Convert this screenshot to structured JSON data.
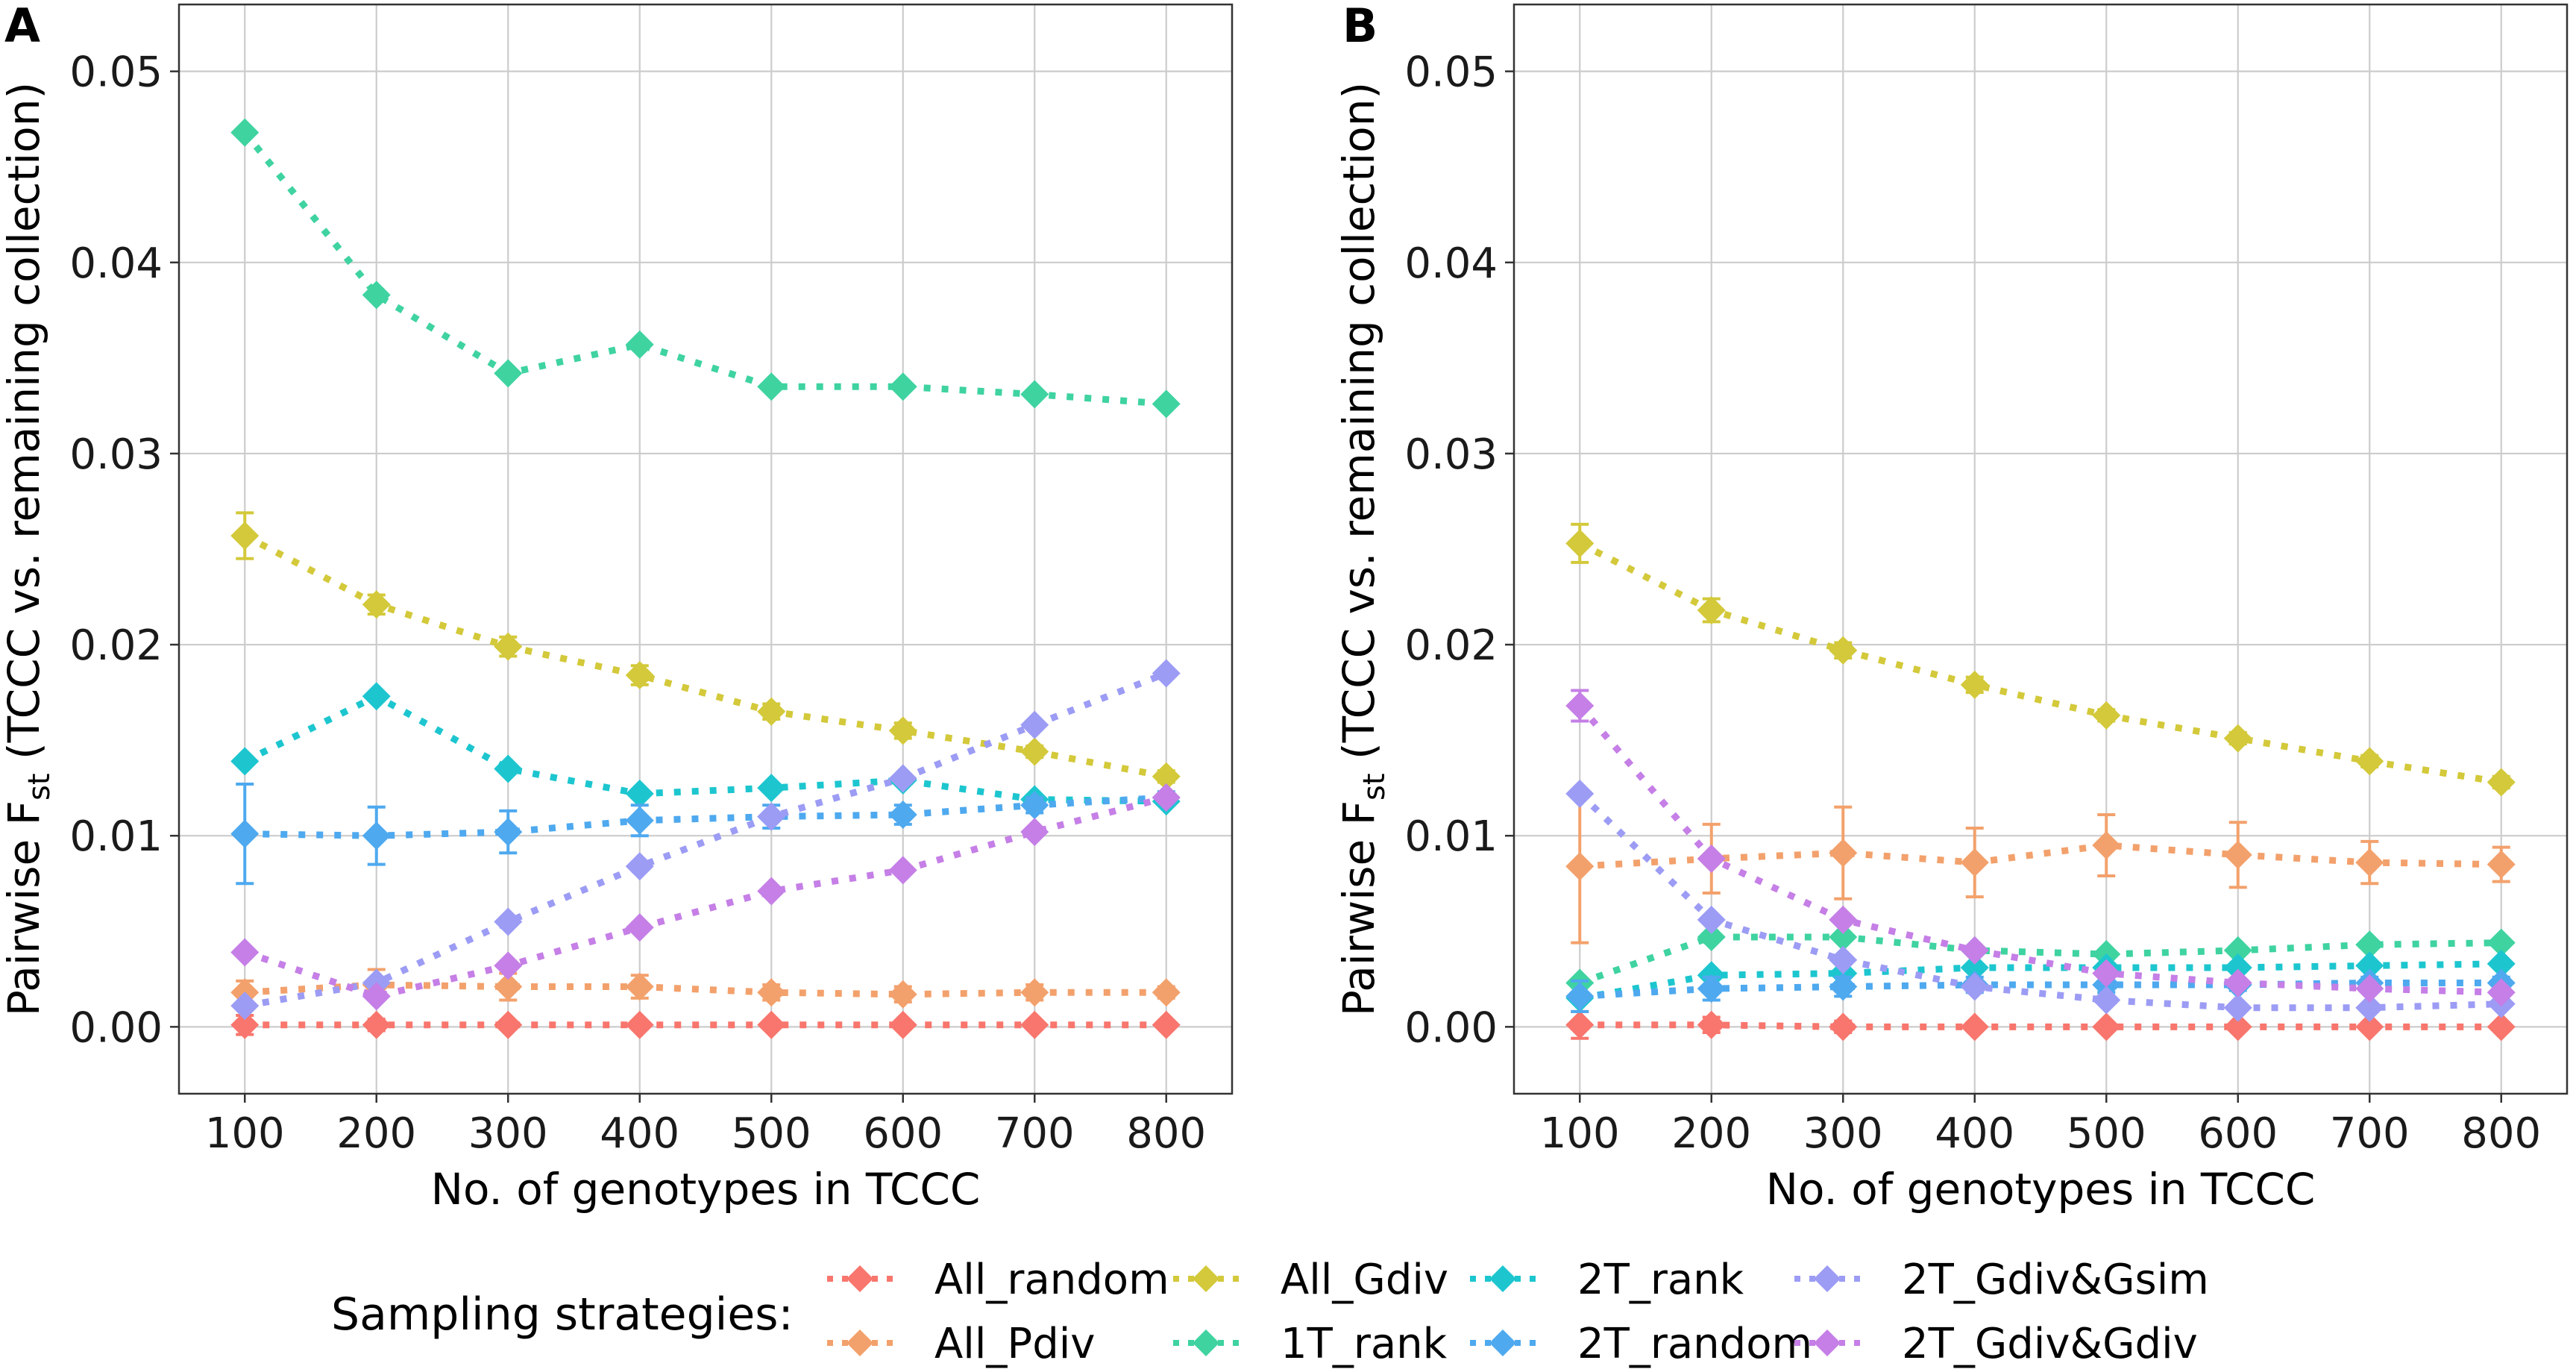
{
  "chart_data": [
    {
      "panel": "A",
      "type": "line",
      "xlabel": "No. of genotypes in TCCC",
      "ylabel": "Pairwise F",
      "ylabel_sub": "st",
      "ylabel_rest": " (TCCC vs. remaining collection)",
      "xlim": [
        50,
        850
      ],
      "ylim": [
        -0.0035,
        0.0535
      ],
      "xticks": [
        "100",
        "200",
        "300",
        "400",
        "500",
        "600",
        "700",
        "800"
      ],
      "yticks": [
        "0.00",
        "0.01",
        "0.02",
        "0.03",
        "0.04",
        "0.05"
      ],
      "x": [
        100,
        200,
        300,
        400,
        500,
        600,
        700,
        800
      ],
      "series": [
        {
          "name": "All_random",
          "color": "#f8766d",
          "values": [
            0.0001,
            0.0001,
            0.0001,
            0.0001,
            0.0001,
            0.0001,
            0.0001,
            0.0001
          ],
          "err": [
            0.0005,
            0.0003,
            0.0002,
            0.0002,
            0.0002,
            0.0002,
            0.0002,
            0.0002
          ]
        },
        {
          "name": "All_Pdiv",
          "color": "#f3a16c",
          "values": [
            0.0018,
            0.0022,
            0.0021,
            0.0021,
            0.0018,
            0.0017,
            0.0018,
            0.0018
          ],
          "err": [
            0.0006,
            0.0008,
            0.0007,
            0.0006,
            0.0004,
            0.0004,
            0.0004,
            0.0003
          ]
        },
        {
          "name": "All_Gdiv",
          "color": "#d3c93a",
          "values": [
            0.0257,
            0.0221,
            0.0199,
            0.0184,
            0.0165,
            0.0155,
            0.0144,
            0.0131
          ],
          "err": [
            0.0012,
            0.0005,
            0.0005,
            0.0005,
            0.0004,
            0.0004,
            0.0003,
            0.0003
          ]
        },
        {
          "name": "1T_rank",
          "color": "#3fd3a0",
          "values": [
            0.0468,
            0.0383,
            0.0342,
            0.0357,
            0.0335,
            0.0335,
            0.0331,
            0.0326
          ],
          "err": [
            0,
            0,
            0,
            0,
            0,
            0,
            0,
            0
          ]
        },
        {
          "name": "2T_rank",
          "color": "#1dc6cf",
          "values": [
            0.0139,
            0.0173,
            0.0135,
            0.0122,
            0.0125,
            0.0129,
            0.0119,
            0.0118
          ],
          "err": [
            0,
            0,
            0,
            0,
            0,
            0,
            0,
            0
          ]
        },
        {
          "name": "2T_random",
          "color": "#4ea9ef",
          "values": [
            0.0101,
            0.01,
            0.0102,
            0.0108,
            0.011,
            0.0111,
            0.0116,
            0.012
          ],
          "err": [
            0.0026,
            0.0015,
            0.0011,
            0.0008,
            0.0006,
            0.0005,
            0.0004,
            0.0003
          ]
        },
        {
          "name": "2T_Gdiv&Gsim",
          "color": "#9c9cf5",
          "values": [
            0.0011,
            0.0023,
            0.0055,
            0.0084,
            0.011,
            0.013,
            0.0158,
            0.0185
          ],
          "err": [
            0,
            0,
            0,
            0,
            0,
            0,
            0,
            0
          ]
        },
        {
          "name": "2T_Gdiv&Gdiv",
          "color": "#c57fe6",
          "values": [
            0.0039,
            0.0016,
            0.0032,
            0.0052,
            0.0071,
            0.0082,
            0.0102,
            0.012
          ],
          "err": [
            0,
            0,
            0,
            0,
            0,
            0,
            0,
            0
          ]
        }
      ]
    },
    {
      "panel": "B",
      "type": "line",
      "xlabel": "No. of genotypes in TCCC",
      "ylabel": "Pairwise F",
      "ylabel_sub": "st",
      "ylabel_rest": " (TCCC vs. remaining collection)",
      "xlim": [
        50,
        850
      ],
      "ylim": [
        -0.0035,
        0.0535
      ],
      "xticks": [
        "100",
        "200",
        "300",
        "400",
        "500",
        "600",
        "700",
        "800"
      ],
      "yticks": [
        "0.00",
        "0.01",
        "0.02",
        "0.03",
        "0.04",
        "0.05"
      ],
      "x": [
        100,
        200,
        300,
        400,
        500,
        600,
        700,
        800
      ],
      "series": [
        {
          "name": "All_random",
          "color": "#f8766d",
          "values": [
            0.0001,
            0.0001,
            0.0,
            0.0,
            0.0,
            0.0,
            0.0,
            0.0
          ],
          "err": [
            0.0007,
            0.0004,
            0.0003,
            0.0002,
            0.0002,
            0.0002,
            0.0002,
            0.0002
          ]
        },
        {
          "name": "All_Pdiv",
          "color": "#f3a16c",
          "values": [
            0.0084,
            0.0088,
            0.0091,
            0.0086,
            0.0095,
            0.009,
            0.0086,
            0.0085
          ],
          "err": [
            0.004,
            0.0018,
            0.0024,
            0.0018,
            0.0016,
            0.0017,
            0.0011,
            0.0009
          ]
        },
        {
          "name": "All_Gdiv",
          "color": "#d3c93a",
          "values": [
            0.0253,
            0.0218,
            0.0197,
            0.0179,
            0.0163,
            0.0151,
            0.0139,
            0.0128
          ],
          "err": [
            0.001,
            0.0006,
            0.0004,
            0.0004,
            0.0003,
            0.0003,
            0.0003,
            0.0003
          ]
        },
        {
          "name": "1T_rank",
          "color": "#3fd3a0",
          "values": [
            0.0023,
            0.0047,
            0.0047,
            0.004,
            0.0038,
            0.004,
            0.0043,
            0.0044
          ],
          "err": [
            0,
            0,
            0,
            0,
            0,
            0,
            0,
            0
          ]
        },
        {
          "name": "2T_rank",
          "color": "#1dc6cf",
          "values": [
            0.0015,
            0.0027,
            0.0028,
            0.0031,
            0.0031,
            0.0031,
            0.0032,
            0.0033
          ],
          "err": [
            0,
            0,
            0,
            0,
            0,
            0,
            0,
            0
          ]
        },
        {
          "name": "2T_random",
          "color": "#4ea9ef",
          "values": [
            0.0016,
            0.002,
            0.0021,
            0.0022,
            0.0022,
            0.0022,
            0.0023,
            0.0023
          ],
          "err": [
            0.0008,
            0.0006,
            0.0005,
            0.0004,
            0.0004,
            0.0003,
            0.0003,
            0.0003
          ]
        },
        {
          "name": "2T_Gdiv&Gsim",
          "color": "#9c9cf5",
          "values": [
            0.0122,
            0.0056,
            0.0035,
            0.0021,
            0.0014,
            0.001,
            0.001,
            0.0012
          ],
          "err": [
            0,
            0,
            0,
            0,
            0,
            0,
            0,
            0
          ]
        },
        {
          "name": "2T_Gdiv&Gdiv",
          "color": "#c57fe6",
          "values": [
            0.0168,
            0.0088,
            0.0056,
            0.004,
            0.0028,
            0.0023,
            0.002,
            0.0018
          ],
          "err": [
            0.0008,
            0,
            0,
            0,
            0,
            0,
            0,
            0
          ]
        }
      ]
    }
  ],
  "legend": {
    "title": "Sampling strategies:",
    "placement": "bottom-center"
  }
}
